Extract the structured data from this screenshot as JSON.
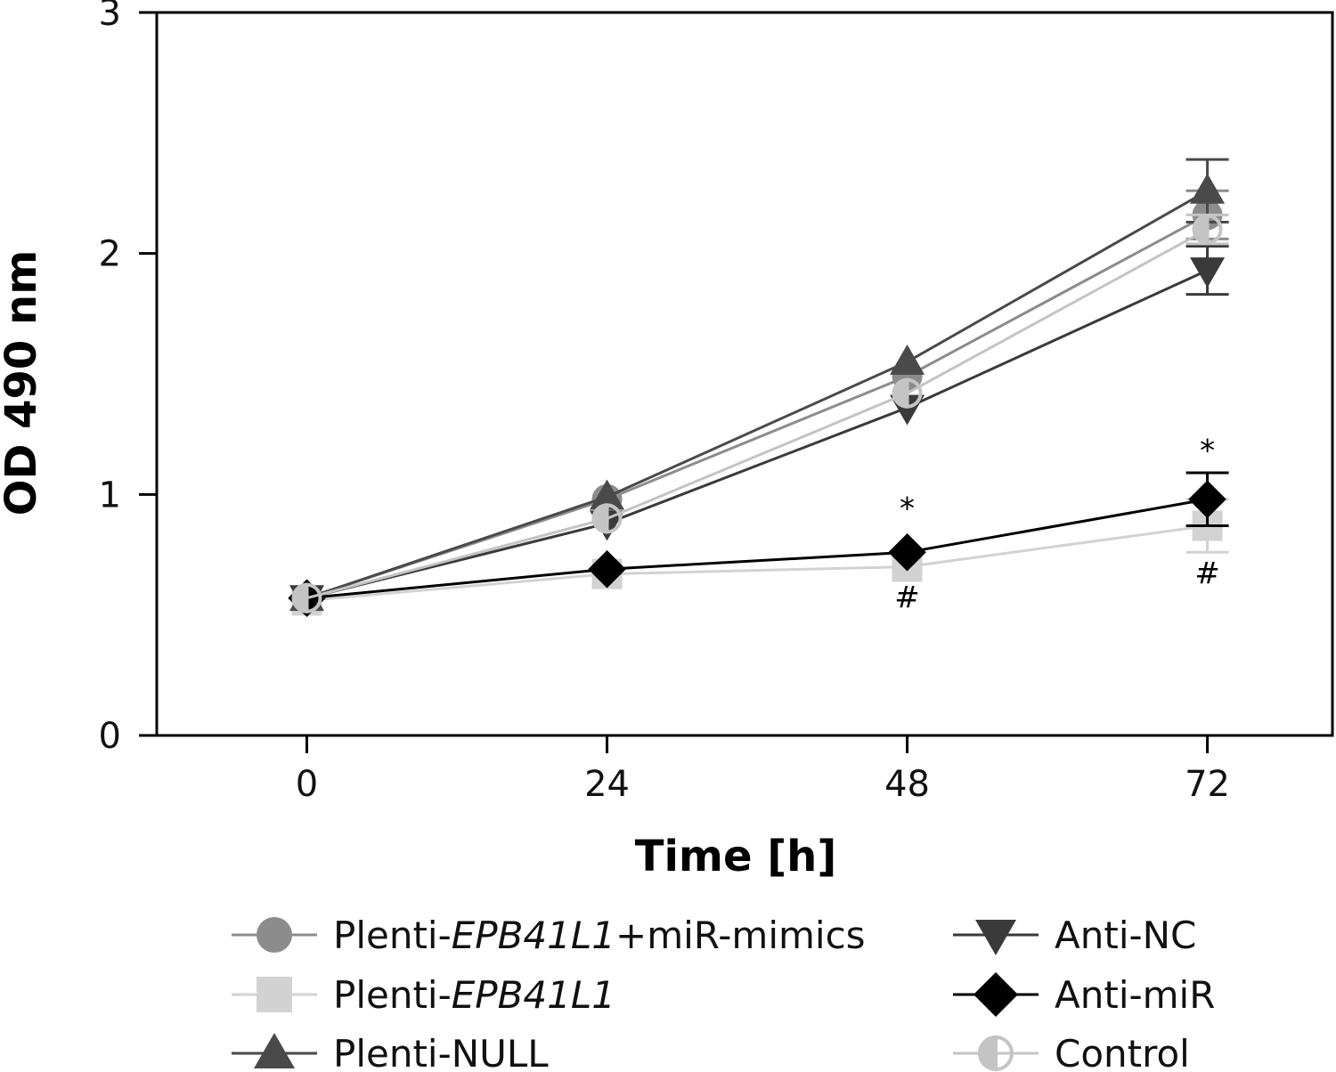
{
  "chart_data": {
    "type": "line",
    "title": "",
    "xlabel": "Time [h]",
    "ylabel": "OD 490 nm",
    "x": [
      0,
      24,
      48,
      72
    ],
    "x_ticks": [
      "0",
      "24",
      "48",
      "72"
    ],
    "xlim": [
      -12,
      82
    ],
    "ylim": [
      0,
      3
    ],
    "y_ticks": [
      "0",
      "1",
      "2",
      "3"
    ],
    "grid": false,
    "legend_position": "bottom",
    "series": [
      {
        "name": "Plenti-EPB41L1+miR-mimics",
        "label_prefix": "Plenti-",
        "label_italic": "EPB41L1",
        "label_suffix": "+miR-mimics",
        "marker": "circle",
        "color": "#8c8c8c",
        "values": [
          0.57,
          0.98,
          1.49,
          2.16
        ],
        "errors": [
          0,
          0,
          0,
          0.1
        ]
      },
      {
        "name": "Plenti-EPB41L1",
        "label_prefix": "Plenti-",
        "label_italic": "EPB41L1",
        "label_suffix": "",
        "marker": "square",
        "color": "#d2d2d2",
        "values": [
          0.56,
          0.67,
          0.7,
          0.87
        ],
        "errors": [
          0,
          0,
          0,
          0.11
        ]
      },
      {
        "name": "Plenti-NULL",
        "label_prefix": "Plenti-NULL",
        "label_italic": "",
        "label_suffix": "",
        "marker": "triangle-up",
        "color": "#4a4a4a",
        "values": [
          0.57,
          0.99,
          1.55,
          2.26
        ],
        "errors": [
          0,
          0,
          0,
          0.13
        ]
      },
      {
        "name": "Anti-NC",
        "label_prefix": "Anti-NC",
        "label_italic": "",
        "label_suffix": "",
        "marker": "triangle-down",
        "color": "#3a3a3a",
        "values": [
          0.57,
          0.88,
          1.36,
          1.93
        ],
        "errors": [
          0,
          0,
          0,
          0.1
        ]
      },
      {
        "name": "Anti-miR",
        "label_prefix": "Anti-miR",
        "label_italic": "",
        "label_suffix": "",
        "marker": "diamond",
        "color": "#000000",
        "values": [
          0.57,
          0.69,
          0.76,
          0.98
        ],
        "errors": [
          0,
          0,
          0,
          0.11
        ]
      },
      {
        "name": "Control",
        "label_prefix": "Control",
        "label_italic": "",
        "label_suffix": "",
        "marker": "circle-half",
        "color": "#c4c4c4",
        "values": [
          0.57,
          0.9,
          1.42,
          2.1
        ],
        "errors": [
          0,
          0,
          0,
          0.06
        ]
      }
    ],
    "annotations": [
      {
        "text": "*",
        "x": 48,
        "y": 0.9
      },
      {
        "text": "#",
        "x": 48,
        "y": 0.53
      },
      {
        "text": "*",
        "x": 72,
        "y": 1.14
      },
      {
        "text": "#",
        "x": 72,
        "y": 0.63
      }
    ]
  }
}
